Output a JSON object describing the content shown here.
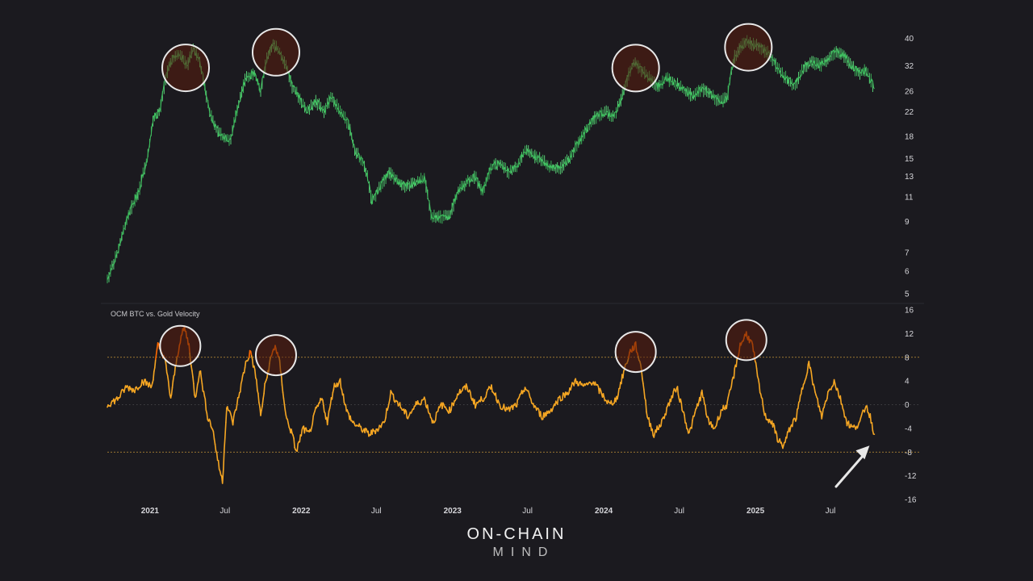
{
  "colors": {
    "background": "#1b1a1f",
    "price_series": "#3fbf5f",
    "price_highlight": "#5ee07e",
    "velocity_series": "#f5a623",
    "velocity_hot": "#ff6a00",
    "circle_stroke": "#e8e8e8",
    "circle_fill": "#5a1e0c",
    "threshold_line": "#d8a23a",
    "zero_line": "#8a8a8a"
  },
  "branding": {
    "top": "ON-CHAIN",
    "bottom": "MIND"
  },
  "chart_data": [
    {
      "id": "price-pane",
      "type": "line",
      "scale": "log",
      "title": "",
      "ylim": [
        5,
        42
      ],
      "yticks": [
        40,
        32,
        26,
        22,
        18,
        15,
        13,
        11,
        9,
        7,
        6,
        5
      ],
      "x_range": [
        "2020-09-20",
        "2025-10-20"
      ],
      "points": [
        [
          "2020-09-20",
          5.6
        ],
        [
          "2020-10-15",
          7.0
        ],
        [
          "2020-11-10",
          9.5
        ],
        [
          "2020-12-05",
          11.5
        ],
        [
          "2020-12-25",
          15.0
        ],
        [
          "2021-01-10",
          21.0
        ],
        [
          "2021-01-25",
          22.0
        ],
        [
          "2021-02-10",
          30.0
        ],
        [
          "2021-02-25",
          34.0
        ],
        [
          "2021-03-15",
          35.0
        ],
        [
          "2021-04-01",
          32.0
        ],
        [
          "2021-04-15",
          37.0
        ],
        [
          "2021-05-01",
          33.0
        ],
        [
          "2021-05-15",
          26.0
        ],
        [
          "2021-05-25",
          22.0
        ],
        [
          "2021-06-10",
          19.0
        ],
        [
          "2021-06-25",
          18.0
        ],
        [
          "2021-07-15",
          17.5
        ],
        [
          "2021-08-01",
          23.0
        ],
        [
          "2021-08-20",
          29.0
        ],
        [
          "2021-09-10",
          30.0
        ],
        [
          "2021-09-25",
          26.0
        ],
        [
          "2021-10-10",
          34.0
        ],
        [
          "2021-10-25",
          38.0
        ],
        [
          "2021-11-10",
          36.0
        ],
        [
          "2021-11-25",
          32.0
        ],
        [
          "2021-12-10",
          27.0
        ],
        [
          "2021-12-25",
          25.0
        ],
        [
          "2022-01-15",
          22.0
        ],
        [
          "2022-02-05",
          24.0
        ],
        [
          "2022-02-25",
          22.0
        ],
        [
          "2022-03-15",
          25.0
        ],
        [
          "2022-04-05",
          22.0
        ],
        [
          "2022-04-25",
          20.0
        ],
        [
          "2022-05-10",
          16.0
        ],
        [
          "2022-05-25",
          15.0
        ],
        [
          "2022-06-10",
          13.0
        ],
        [
          "2022-06-20",
          10.5
        ],
        [
          "2022-07-10",
          12.0
        ],
        [
          "2022-08-01",
          13.5
        ],
        [
          "2022-08-20",
          12.5
        ],
        [
          "2022-09-10",
          12.0
        ],
        [
          "2022-10-01",
          12.3
        ],
        [
          "2022-10-25",
          12.8
        ],
        [
          "2022-11-10",
          9.5
        ],
        [
          "2022-12-01",
          9.3
        ],
        [
          "2022-12-25",
          9.4
        ],
        [
          "2023-01-15",
          11.5
        ],
        [
          "2023-02-05",
          12.5
        ],
        [
          "2023-02-25",
          13.0
        ],
        [
          "2023-03-15",
          11.5
        ],
        [
          "2023-04-05",
          14.0
        ],
        [
          "2023-04-25",
          14.5
        ],
        [
          "2023-05-15",
          13.5
        ],
        [
          "2023-06-05",
          14.0
        ],
        [
          "2023-06-25",
          16.0
        ],
        [
          "2023-07-15",
          15.5
        ],
        [
          "2023-08-05",
          14.8
        ],
        [
          "2023-08-25",
          14.0
        ],
        [
          "2023-09-15",
          13.8
        ],
        [
          "2023-10-10",
          15.0
        ],
        [
          "2023-10-30",
          17.0
        ],
        [
          "2023-11-20",
          19.0
        ],
        [
          "2023-12-10",
          21.0
        ],
        [
          "2024-01-05",
          22.0
        ],
        [
          "2024-01-25",
          21.0
        ],
        [
          "2024-02-15",
          25.0
        ],
        [
          "2024-03-05",
          31.0
        ],
        [
          "2024-03-15",
          33.0
        ],
        [
          "2024-04-01",
          31.0
        ],
        [
          "2024-04-20",
          29.0
        ],
        [
          "2024-05-10",
          27.0
        ],
        [
          "2024-06-01",
          29.0
        ],
        [
          "2024-06-25",
          27.5
        ],
        [
          "2024-07-15",
          26.0
        ],
        [
          "2024-08-05",
          25.0
        ],
        [
          "2024-08-25",
          26.5
        ],
        [
          "2024-09-15",
          25.5
        ],
        [
          "2024-10-05",
          24.0
        ],
        [
          "2024-10-25",
          24.5
        ],
        [
          "2024-11-10",
          34.0
        ],
        [
          "2024-11-25",
          37.0
        ],
        [
          "2024-12-10",
          39.0
        ],
        [
          "2024-12-25",
          38.0
        ],
        [
          "2025-01-15",
          37.0
        ],
        [
          "2025-02-05",
          35.0
        ],
        [
          "2025-02-25",
          31.0
        ],
        [
          "2025-03-15",
          29.0
        ],
        [
          "2025-04-05",
          27.0
        ],
        [
          "2025-04-25",
          31.0
        ],
        [
          "2025-05-15",
          33.0
        ],
        [
          "2025-06-05",
          32.0
        ],
        [
          "2025-06-25",
          34.0
        ],
        [
          "2025-07-15",
          36.0
        ],
        [
          "2025-08-01",
          35.0
        ],
        [
          "2025-08-20",
          32.0
        ],
        [
          "2025-09-10",
          30.0
        ],
        [
          "2025-09-25",
          31.0
        ],
        [
          "2025-10-15",
          26.5
        ]
      ],
      "peak_markers": [
        "2021-03-28",
        "2021-11-01",
        "2024-03-18",
        "2024-12-15"
      ]
    },
    {
      "id": "velocity-pane",
      "type": "line",
      "title": "OCM BTC vs. Gold Velocity",
      "ylim": [
        -16,
        16
      ],
      "yticks": [
        16,
        12,
        8,
        4,
        0,
        -4,
        -8,
        -12,
        -16
      ],
      "reference_lines": [
        8,
        0,
        -8
      ],
      "hot_threshold": 8,
      "x_range": [
        "2020-09-20",
        "2025-10-20"
      ],
      "points": [
        [
          "2020-09-20",
          0
        ],
        [
          "2020-10-15",
          1
        ],
        [
          "2020-11-05",
          3
        ],
        [
          "2020-11-25",
          2.5
        ],
        [
          "2020-12-15",
          4
        ],
        [
          "2021-01-05",
          3
        ],
        [
          "2021-01-20",
          10
        ],
        [
          "2021-02-05",
          8
        ],
        [
          "2021-02-20",
          1
        ],
        [
          "2021-03-05",
          7
        ],
        [
          "2021-03-15",
          11
        ],
        [
          "2021-03-25",
          13
        ],
        [
          "2021-04-05",
          10
        ],
        [
          "2021-04-20",
          1
        ],
        [
          "2021-05-01",
          6
        ],
        [
          "2021-05-20",
          -2
        ],
        [
          "2021-06-01",
          -4
        ],
        [
          "2021-06-15",
          -10
        ],
        [
          "2021-06-25",
          -13
        ],
        [
          "2021-07-05",
          0
        ],
        [
          "2021-07-20",
          -3
        ],
        [
          "2021-08-05",
          2
        ],
        [
          "2021-08-20",
          7
        ],
        [
          "2021-09-01",
          9
        ],
        [
          "2021-09-15",
          4
        ],
        [
          "2021-09-25",
          -2
        ],
        [
          "2021-10-05",
          3
        ],
        [
          "2021-10-20",
          8
        ],
        [
          "2021-10-30",
          10
        ],
        [
          "2021-11-10",
          7
        ],
        [
          "2021-11-25",
          -2
        ],
        [
          "2021-12-10",
          -5
        ],
        [
          "2021-12-20",
          -8
        ],
        [
          "2022-01-05",
          -4
        ],
        [
          "2022-01-20",
          -5
        ],
        [
          "2022-02-05",
          -1
        ],
        [
          "2022-02-20",
          1
        ],
        [
          "2022-03-05",
          -3
        ],
        [
          "2022-03-20",
          3
        ],
        [
          "2022-04-05",
          4
        ],
        [
          "2022-04-20",
          -1
        ],
        [
          "2022-05-05",
          -3
        ],
        [
          "2022-05-25",
          -4
        ],
        [
          "2022-06-15",
          -5
        ],
        [
          "2022-07-05",
          -4
        ],
        [
          "2022-07-20",
          -3
        ],
        [
          "2022-08-05",
          2
        ],
        [
          "2022-08-25",
          0
        ],
        [
          "2022-09-15",
          -2
        ],
        [
          "2022-10-05",
          0
        ],
        [
          "2022-10-25",
          1
        ],
        [
          "2022-11-15",
          -3
        ],
        [
          "2022-12-05",
          0
        ],
        [
          "2022-12-25",
          -1
        ],
        [
          "2023-01-15",
          2
        ],
        [
          "2023-02-05",
          3
        ],
        [
          "2023-02-25",
          0
        ],
        [
          "2023-03-15",
          1
        ],
        [
          "2023-04-05",
          3
        ],
        [
          "2023-04-25",
          0
        ],
        [
          "2023-05-15",
          -1
        ],
        [
          "2023-06-05",
          0
        ],
        [
          "2023-06-25",
          3
        ],
        [
          "2023-07-15",
          0
        ],
        [
          "2023-08-05",
          -2
        ],
        [
          "2023-08-25",
          -1
        ],
        [
          "2023-09-15",
          1
        ],
        [
          "2023-10-05",
          2
        ],
        [
          "2023-10-25",
          4
        ],
        [
          "2023-11-15",
          3
        ],
        [
          "2023-12-05",
          4
        ],
        [
          "2023-12-25",
          2
        ],
        [
          "2024-01-15",
          0
        ],
        [
          "2024-02-01",
          1
        ],
        [
          "2024-02-20",
          6
        ],
        [
          "2024-03-05",
          9
        ],
        [
          "2024-03-18",
          10
        ],
        [
          "2024-04-01",
          6
        ],
        [
          "2024-04-15",
          -2
        ],
        [
          "2024-05-01",
          -5
        ],
        [
          "2024-05-20",
          -3
        ],
        [
          "2024-06-05",
          0
        ],
        [
          "2024-06-25",
          3
        ],
        [
          "2024-07-10",
          -1
        ],
        [
          "2024-07-25",
          -5
        ],
        [
          "2024-08-10",
          -1
        ],
        [
          "2024-08-25",
          2
        ],
        [
          "2024-09-10",
          -3
        ],
        [
          "2024-09-25",
          -4
        ],
        [
          "2024-10-10",
          -1
        ],
        [
          "2024-10-25",
          0
        ],
        [
          "2024-11-10",
          5
        ],
        [
          "2024-11-25",
          10
        ],
        [
          "2024-12-10",
          12
        ],
        [
          "2024-12-25",
          10
        ],
        [
          "2025-01-10",
          3
        ],
        [
          "2025-01-25",
          -2
        ],
        [
          "2025-02-10",
          -3
        ],
        [
          "2025-02-25",
          -6
        ],
        [
          "2025-03-10",
          -7
        ],
        [
          "2025-03-25",
          -4
        ],
        [
          "2025-04-10",
          -2
        ],
        [
          "2025-04-25",
          3
        ],
        [
          "2025-05-10",
          7
        ],
        [
          "2025-05-25",
          2
        ],
        [
          "2025-06-10",
          -2
        ],
        [
          "2025-06-25",
          2
        ],
        [
          "2025-07-10",
          4
        ],
        [
          "2025-07-25",
          1
        ],
        [
          "2025-08-10",
          -3
        ],
        [
          "2025-08-25",
          -4
        ],
        [
          "2025-09-10",
          -3
        ],
        [
          "2025-09-25",
          0
        ],
        [
          "2025-10-05",
          -2
        ],
        [
          "2025-10-15",
          -5
        ]
      ],
      "peak_markers": [
        "2021-03-15",
        "2021-11-01",
        "2024-03-18",
        "2024-12-10"
      ],
      "end_arrow": true
    }
  ],
  "x_axis": {
    "ticks": [
      {
        "label": "2021",
        "date": "2021-01-01",
        "bold": true
      },
      {
        "label": "Jul",
        "date": "2021-07-01",
        "bold": false
      },
      {
        "label": "2022",
        "date": "2022-01-01",
        "bold": true
      },
      {
        "label": "Jul",
        "date": "2022-07-01",
        "bold": false
      },
      {
        "label": "2023",
        "date": "2023-01-01",
        "bold": true
      },
      {
        "label": "Jul",
        "date": "2023-07-01",
        "bold": false
      },
      {
        "label": "2024",
        "date": "2024-01-01",
        "bold": true
      },
      {
        "label": "Jul",
        "date": "2024-07-01",
        "bold": false
      },
      {
        "label": "2025",
        "date": "2025-01-01",
        "bold": true
      },
      {
        "label": "Jul",
        "date": "2025-07-01",
        "bold": false
      }
    ]
  }
}
